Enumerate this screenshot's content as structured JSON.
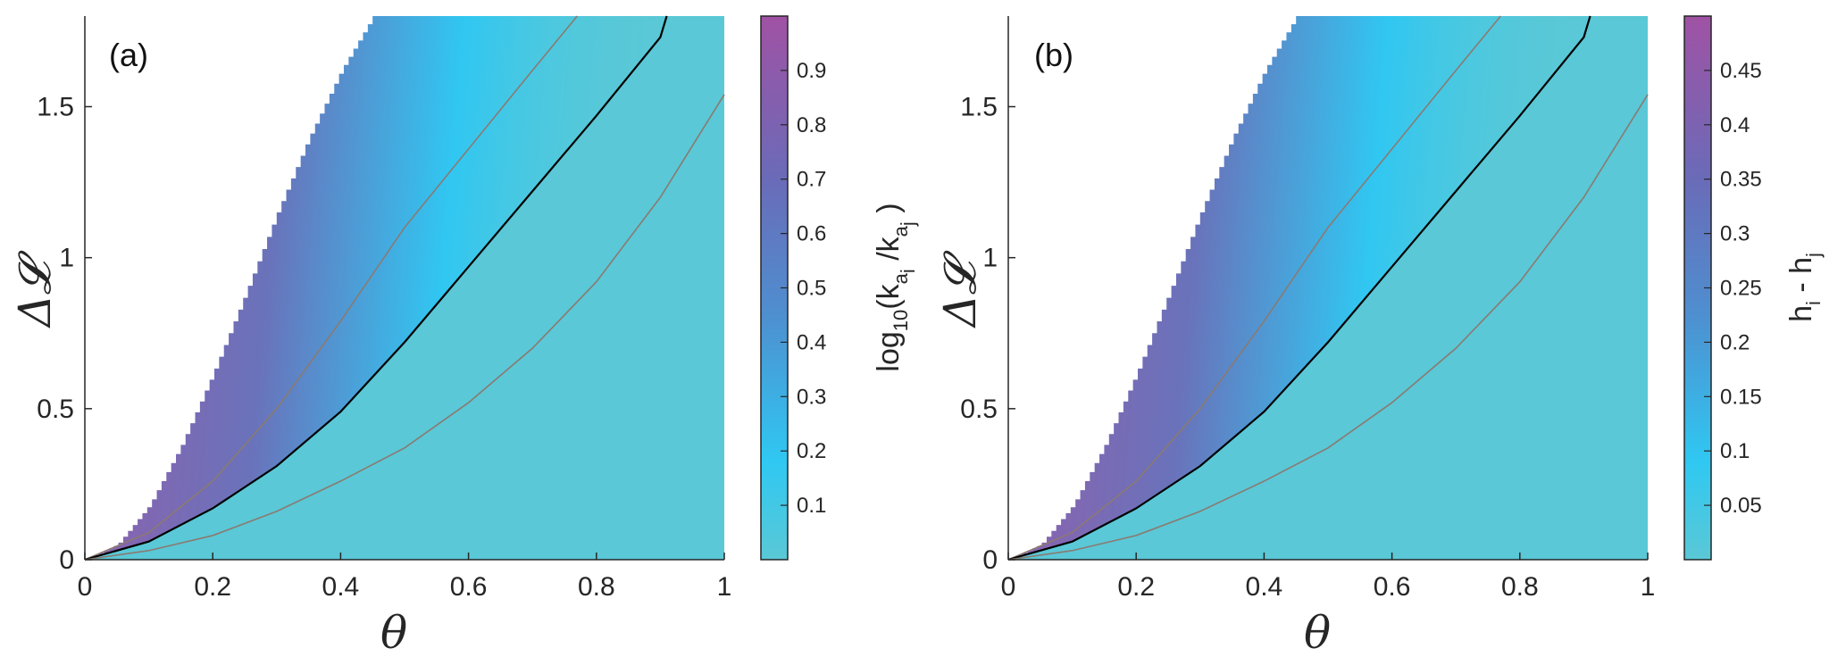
{
  "chart_data": [
    {
      "type": "heatmap",
      "panel_label": "(a)",
      "xlabel": "θ",
      "ylabel": "ΔL",
      "ylabel_script": "𝓛",
      "xlim": [
        0,
        1
      ],
      "ylim": [
        0,
        1.8
      ],
      "x_ticks": [
        0,
        0.2,
        0.4,
        0.6,
        0.8,
        1
      ],
      "x_tick_labels": [
        "0",
        "0.2",
        "0.4",
        "0.6",
        "0.8",
        "1"
      ],
      "y_ticks": [
        0,
        0.5,
        1,
        1.5
      ],
      "y_tick_labels": [
        "0",
        "0.5",
        "1",
        "1.5"
      ],
      "colorbar": {
        "label": "log10(ka_i/ka_j)",
        "label_parts": {
          "pre": "log",
          "sub1": "10",
          "mid1": "(k",
          "sub2": "a",
          "subsub2": "i",
          "mid2": " /k",
          "sub3": "a",
          "subsub3": "j",
          "post": " )"
        },
        "min": 0,
        "max": 1,
        "ticks": [
          0.1,
          0.2,
          0.3,
          0.4,
          0.5,
          0.6,
          0.7,
          0.8,
          0.9
        ],
        "tick_labels": [
          "0.1",
          "0.2",
          "0.3",
          "0.4",
          "0.5",
          "0.6",
          "0.7",
          "0.8",
          "0.9"
        ]
      },
      "undefined_region_boundary": [
        [
          0,
          0
        ],
        [
          0.05,
          0.05
        ],
        [
          0.1,
          0.18
        ],
        [
          0.15,
          0.38
        ],
        [
          0.2,
          0.62
        ],
        [
          0.25,
          0.88
        ],
        [
          0.3,
          1.15
        ],
        [
          0.35,
          1.4
        ],
        [
          0.4,
          1.62
        ],
        [
          0.45,
          1.8
        ]
      ],
      "curves": [
        {
          "name": "upper-contour",
          "color": "#8a7a72",
          "points": [
            [
              0,
              0
            ],
            [
              0.1,
              0.09
            ],
            [
              0.2,
              0.26
            ],
            [
              0.3,
              0.5
            ],
            [
              0.4,
              0.79
            ],
            [
              0.5,
              1.1
            ],
            [
              0.6,
              1.36
            ],
            [
              0.7,
              1.62
            ],
            [
              0.77,
              1.8
            ]
          ]
        },
        {
          "name": "center-curve",
          "color": "#000000",
          "points": [
            [
              0,
              0
            ],
            [
              0.1,
              0.06
            ],
            [
              0.2,
              0.17
            ],
            [
              0.3,
              0.31
            ],
            [
              0.4,
              0.49
            ],
            [
              0.5,
              0.72
            ],
            [
              0.6,
              0.97
            ],
            [
              0.7,
              1.22
            ],
            [
              0.8,
              1.47
            ],
            [
              0.9,
              1.73
            ],
            [
              0.91,
              1.8
            ]
          ]
        },
        {
          "name": "lower-contour",
          "color": "#8a7a72",
          "points": [
            [
              0,
              0
            ],
            [
              0.1,
              0.03
            ],
            [
              0.2,
              0.08
            ],
            [
              0.3,
              0.16
            ],
            [
              0.4,
              0.26
            ],
            [
              0.5,
              0.37
            ],
            [
              0.6,
              0.52
            ],
            [
              0.7,
              0.7
            ],
            [
              0.8,
              0.92
            ],
            [
              0.9,
              1.2
            ],
            [
              1,
              1.54
            ]
          ]
        }
      ]
    },
    {
      "type": "heatmap",
      "panel_label": "(b)",
      "xlabel": "θ",
      "ylabel": "ΔL",
      "ylabel_script": "𝓛",
      "xlim": [
        0,
        1
      ],
      "ylim": [
        0,
        1.8
      ],
      "x_ticks": [
        0,
        0.2,
        0.4,
        0.6,
        0.8,
        1
      ],
      "x_tick_labels": [
        "0",
        "0.2",
        "0.4",
        "0.6",
        "0.8",
        "1"
      ],
      "y_ticks": [
        0,
        0.5,
        1,
        1.5
      ],
      "y_tick_labels": [
        "0",
        "0.5",
        "1",
        "1.5"
      ],
      "colorbar": {
        "label": "hi - hj",
        "label_parts": {
          "pre": "h",
          "sub1": "i",
          "mid1": " - h",
          "sub2": "j"
        },
        "min": 0,
        "max": 0.5,
        "ticks": [
          0.05,
          0.1,
          0.15,
          0.2,
          0.25,
          0.3,
          0.35,
          0.4,
          0.45
        ],
        "tick_labels": [
          "0.05",
          "0.1",
          "0.15",
          "0.2",
          "0.25",
          "0.3",
          "0.35",
          "0.4",
          "0.45"
        ]
      },
      "undefined_region_boundary": [
        [
          0,
          0
        ],
        [
          0.05,
          0.05
        ],
        [
          0.1,
          0.18
        ],
        [
          0.15,
          0.38
        ],
        [
          0.2,
          0.62
        ],
        [
          0.25,
          0.88
        ],
        [
          0.3,
          1.15
        ],
        [
          0.35,
          1.4
        ],
        [
          0.4,
          1.62
        ],
        [
          0.45,
          1.8
        ]
      ],
      "curves": [
        {
          "name": "upper-contour",
          "color": "#8a7a72",
          "points": [
            [
              0,
              0
            ],
            [
              0.1,
              0.09
            ],
            [
              0.2,
              0.26
            ],
            [
              0.3,
              0.5
            ],
            [
              0.4,
              0.79
            ],
            [
              0.5,
              1.1
            ],
            [
              0.6,
              1.36
            ],
            [
              0.7,
              1.62
            ],
            [
              0.77,
              1.8
            ]
          ]
        },
        {
          "name": "center-curve",
          "color": "#000000",
          "points": [
            [
              0,
              0
            ],
            [
              0.1,
              0.06
            ],
            [
              0.2,
              0.17
            ],
            [
              0.3,
              0.31
            ],
            [
              0.4,
              0.49
            ],
            [
              0.5,
              0.72
            ],
            [
              0.6,
              0.97
            ],
            [
              0.7,
              1.22
            ],
            [
              0.8,
              1.47
            ],
            [
              0.9,
              1.73
            ],
            [
              0.91,
              1.8
            ]
          ]
        },
        {
          "name": "lower-contour",
          "color": "#8a7a72",
          "points": [
            [
              0,
              0
            ],
            [
              0.1,
              0.03
            ],
            [
              0.2,
              0.08
            ],
            [
              0.3,
              0.16
            ],
            [
              0.4,
              0.26
            ],
            [
              0.5,
              0.37
            ],
            [
              0.6,
              0.52
            ],
            [
              0.7,
              0.7
            ],
            [
              0.8,
              0.92
            ],
            [
              0.9,
              1.2
            ],
            [
              1,
              1.54
            ]
          ]
        }
      ]
    }
  ],
  "colors": {
    "background_field": "#5ac8d6",
    "bright_cyan": "#2bc8f4",
    "purple_top": "#a052a4",
    "mid_blue": "#6d6db9"
  }
}
